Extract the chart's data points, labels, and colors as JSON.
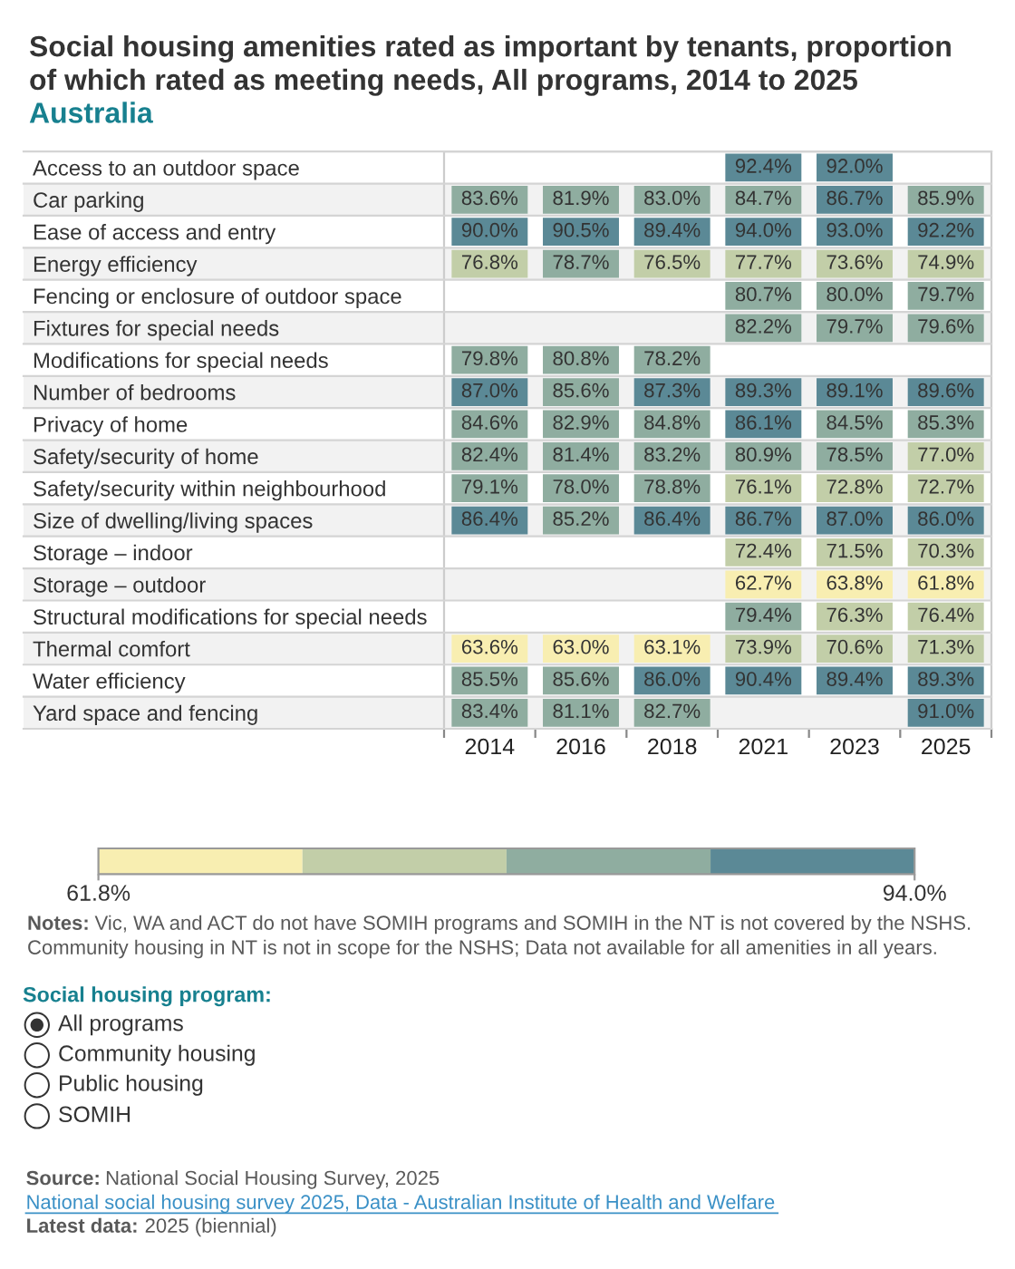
{
  "chart_data": {
    "type": "heatmap",
    "title": "Social housing amenities rated as important by tenants, proportion of which rated as meeting needs, All programs, 2014 to 2025",
    "subtitle": "Australia",
    "categories": [
      "2014",
      "2016",
      "2018",
      "2021",
      "2023",
      "2025"
    ],
    "y_categories": [
      "Access to an outdoor space",
      "Car parking",
      "Ease of access and entry",
      "Energy efficiency",
      "Fencing or enclosure of outdoor space",
      "Fixtures for special needs",
      "Modifications for special needs",
      "Number of bedrooms",
      "Privacy of home",
      "Safety/security of home",
      "Safety/security within neighbourhood",
      "Size of dwelling/living spaces",
      "Storage – indoor",
      "Storage – outdoor",
      "Structural modifications for special needs",
      "Thermal comfort",
      "Water efficiency",
      "Yard space and fencing"
    ],
    "cells": [
      [
        null,
        null,
        null,
        92.4,
        92.0,
        null
      ],
      [
        83.6,
        81.9,
        83.0,
        84.7,
        86.7,
        85.9
      ],
      [
        90.0,
        90.5,
        89.4,
        94.0,
        93.0,
        92.2
      ],
      [
        76.8,
        78.7,
        76.5,
        77.7,
        73.6,
        74.9
      ],
      [
        null,
        null,
        null,
        80.7,
        80.0,
        79.7
      ],
      [
        null,
        null,
        null,
        82.2,
        79.7,
        79.6
      ],
      [
        79.8,
        80.8,
        78.2,
        null,
        null,
        null
      ],
      [
        87.0,
        85.6,
        87.3,
        89.3,
        89.1,
        89.6
      ],
      [
        84.6,
        82.9,
        84.8,
        86.1,
        84.5,
        85.3
      ],
      [
        82.4,
        81.4,
        83.2,
        80.9,
        78.5,
        77.0
      ],
      [
        79.1,
        78.0,
        78.8,
        76.1,
        72.8,
        72.7
      ],
      [
        86.4,
        85.2,
        86.4,
        86.7,
        87.0,
        86.0
      ],
      [
        null,
        null,
        null,
        72.4,
        71.5,
        70.3
      ],
      [
        null,
        null,
        null,
        62.7,
        63.8,
        61.8
      ],
      [
        null,
        null,
        null,
        79.4,
        76.3,
        76.4
      ],
      [
        63.6,
        63.0,
        63.1,
        73.9,
        70.6,
        71.3
      ],
      [
        85.5,
        85.6,
        86.0,
        90.4,
        89.4,
        89.3
      ],
      [
        83.4,
        81.1,
        82.7,
        null,
        null,
        91.0
      ]
    ],
    "cell_labels": [
      [
        null,
        null,
        null,
        "92.4%",
        "92.0%",
        null
      ],
      [
        "83.6%",
        "81.9%",
        "83.0%",
        "84.7%",
        "86.7%",
        "85.9%"
      ],
      [
        "90.0%",
        "90.5%",
        "89.4%",
        "94.0%",
        "93.0%",
        "92.2%"
      ],
      [
        "76.8%",
        "78.7%",
        "76.5%",
        "77.7%",
        "73.6%",
        "74.9%"
      ],
      [
        null,
        null,
        null,
        "80.7%",
        "80.0%",
        "79.7%"
      ],
      [
        null,
        null,
        null,
        "82.2%",
        "79.7%",
        "79.6%"
      ],
      [
        "79.8%",
        "80.8%",
        "78.2%",
        null,
        null,
        null
      ],
      [
        "87.0%",
        "85.6%",
        "87.3%",
        "89.3%",
        "89.1%",
        "89.6%"
      ],
      [
        "84.6%",
        "82.9%",
        "84.8%",
        "86.1%",
        "84.5%",
        "85.3%"
      ],
      [
        "82.4%",
        "81.4%",
        "83.2%",
        "80.9%",
        "78.5%",
        "77.0%"
      ],
      [
        "79.1%",
        "78.0%",
        "78.8%",
        "76.1%",
        "72.8%",
        "72.7%"
      ],
      [
        "86.4%",
        "85.2%",
        "86.4%",
        "86.7%",
        "87.0%",
        "86.0%"
      ],
      [
        null,
        null,
        null,
        "72.4%",
        "71.5%",
        "70.3%"
      ],
      [
        null,
        null,
        null,
        "62.7%",
        "63.8%",
        "61.8%"
      ],
      [
        null,
        null,
        null,
        "79.4%",
        "76.3%",
        "76.4%"
      ],
      [
        "63.6%",
        "63.0%",
        "63.1%",
        "73.9%",
        "70.6%",
        "71.3%"
      ],
      [
        "85.5%",
        "85.6%",
        "86.0%",
        "90.4%",
        "89.4%",
        "89.3%"
      ],
      [
        "83.4%",
        "81.1%",
        "82.7%",
        null,
        null,
        "91.0%"
      ]
    ],
    "colors": [
      "#f8eeb1",
      "#c2cea8",
      "#8fada0",
      "#5b8996"
    ],
    "clim": [
      61.8,
      94.0
    ],
    "cticks": [
      {
        "value": 61.8,
        "label": "61.8%"
      },
      {
        "value": 94.0,
        "label": "94.0%"
      }
    ],
    "grid": "y",
    "annotations": [
      "Notes: Vic, WA and ACT do not have SOMIH programs and SOMIH in the NT is not covered by the NSHS. Community housing in NT is not in scope for the NSHS; Data not available for all amenities in all years.",
      "Social housing program:",
      "All programs",
      "Community housing",
      "Public housing",
      "SOMIH",
      "Source: National Social Housing Survey, 2025",
      "National social housing survey 2025, Data - Australian Institute of Health and Welfare",
      "Latest data: 2025 (biennial)"
    ]
  }
}
